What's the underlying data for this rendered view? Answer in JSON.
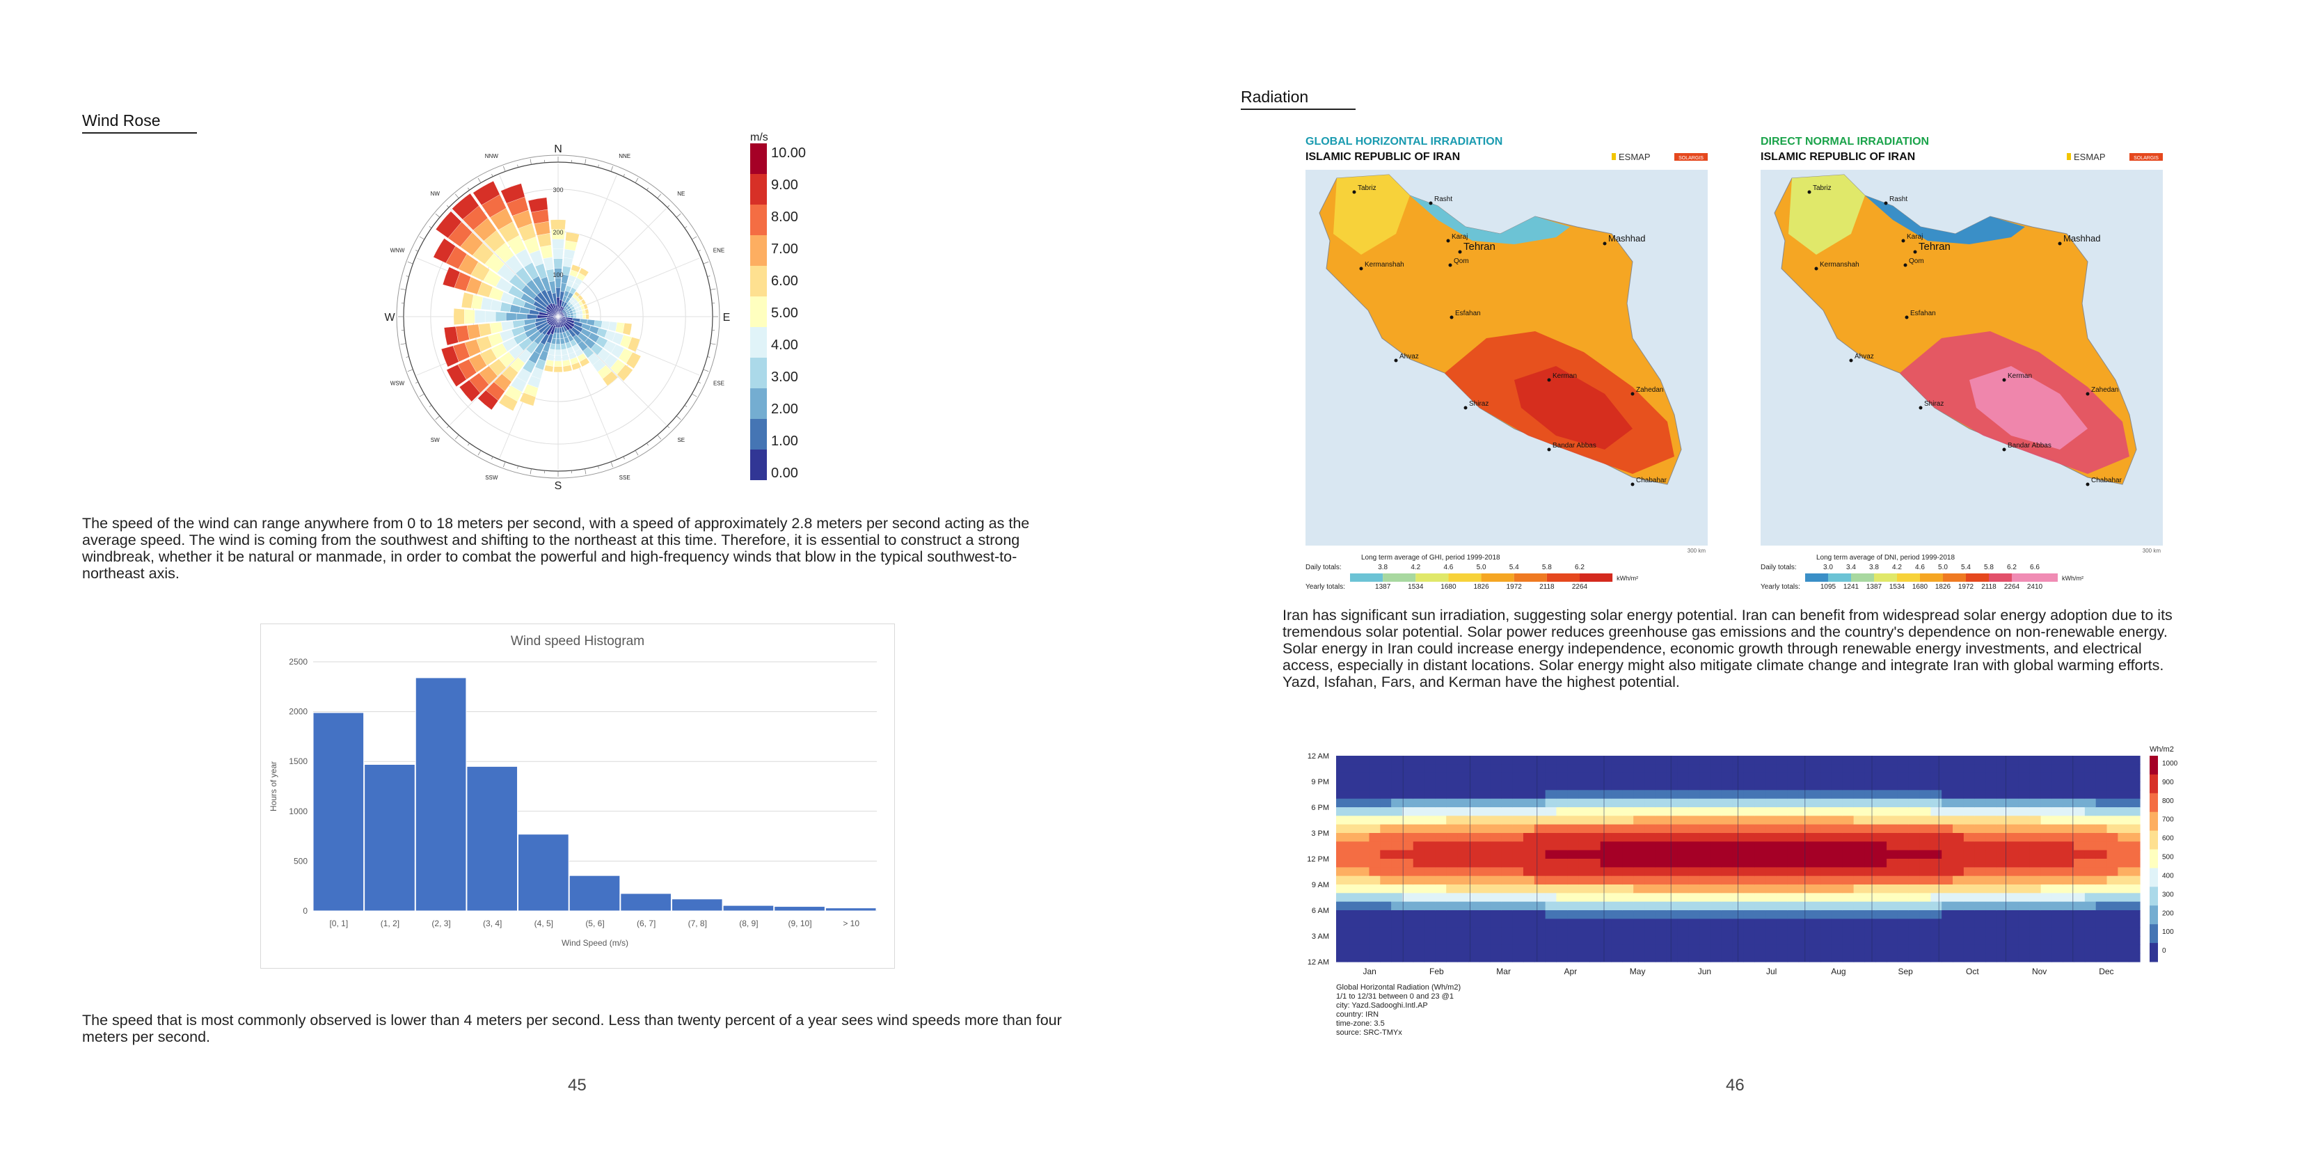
{
  "left": {
    "section_title": "Wind Rose",
    "windrose": {
      "colorbar_title": "m/s",
      "colorbar_labels": [
        "10.00",
        "9.00",
        "8.00",
        "7.00",
        "6.00",
        "5.00",
        "4.00",
        "3.00",
        "2.00",
        "1.00",
        "0.00"
      ],
      "colorbar_colors": [
        "#a50026",
        "#d73027",
        "#f46d43",
        "#fdae61",
        "#fee090",
        "#ffffbf",
        "#e0f3f8",
        "#abd9e9",
        "#74add1",
        "#4575b4",
        "#313695"
      ],
      "directions": [
        "N",
        "NNE",
        "NE",
        "ENE",
        "E",
        "ESE",
        "SE",
        "SSE",
        "S",
        "SSW",
        "SW",
        "WSW",
        "W",
        "WNW",
        "NW",
        "NNW"
      ],
      "ring_labels": [
        "100",
        "200",
        "300"
      ]
    },
    "paragraph1": "The speed of the wind can range anywhere from 0 to 18 meters per second, with a speed of approximately 2.8 meters per second acting as the average speed. The wind is coming from the southwest and shifting to the northeast at this time. Therefore, it is essential to construct a strong windbreak, whether it be natural or manmade, in order to combat the powerful and high-frequency winds that blow in the typical southwest-to-northeast axis.",
    "paragraph2": "The speed that is most commonly observed is lower than 4 meters per second. Less than twenty percent of a year sees wind speeds more than four meters per second.",
    "page_number": "45"
  },
  "right": {
    "section_title": "Radiation",
    "map_ghi": {
      "title": "GLOBAL HORIZONTAL IRRADIATION",
      "subtitle": "ISLAMIC REPUBLIC OF IRAN",
      "legend_title": "Long term average of GHI, period 1999-2018",
      "daily_label": "Daily totals:",
      "daily_values": [
        "3.8",
        "4.2",
        "4.6",
        "5.0",
        "5.4",
        "5.8",
        "6.2"
      ],
      "yearly_label": "Yearly totals:",
      "yearly_values": [
        "1387",
        "1534",
        "1680",
        "1826",
        "1972",
        "2118",
        "2264"
      ],
      "unit": "kWh/m²",
      "colors": [
        "#6cc3d5",
        "#a8d8a0",
        "#e0e86a",
        "#f7d23a",
        "#f5a623",
        "#ef7a22",
        "#e5481e",
        "#d42a1e"
      ]
    },
    "map_dni": {
      "title": "DIRECT NORMAL IRRADIATION",
      "subtitle": "ISLAMIC REPUBLIC OF IRAN",
      "legend_title": "Long term average of DNI, period 1999-2018",
      "daily_label": "Daily totals:",
      "daily_values": [
        "3.0",
        "3.4",
        "3.8",
        "4.2",
        "4.6",
        "5.0",
        "5.4",
        "5.8",
        "6.2",
        "6.6"
      ],
      "yearly_label": "Yearly totals:",
      "yearly_values": [
        "1095",
        "1241",
        "1387",
        "1534",
        "1680",
        "1826",
        "1972",
        "2118",
        "2264",
        "2410"
      ],
      "unit": "kWh/m²",
      "colors": [
        "#3a8fc7",
        "#6cc3d5",
        "#a8d8a0",
        "#e0e86a",
        "#f7d23a",
        "#f5a623",
        "#ef7a22",
        "#e5481e",
        "#e2506a",
        "#f08cb4"
      ]
    },
    "map_common": {
      "esmap_label": "ESMAP",
      "solargis_label": "SOLARGIS",
      "cities": [
        "Tabriz",
        "Rasht",
        "Karaj",
        "Tehran",
        "Qom",
        "Mashhad",
        "Kermanshah",
        "Esfahan",
        "Ahvaz",
        "Kerman",
        "Shiraz",
        "Zahedan",
        "Bandar Abbas",
        "Chabahar"
      ],
      "scale_label": "300 km"
    },
    "paragraph": "Iran has significant sun irradiation, suggesting solar energy potential. Iran can benefit from widespread solar energy adoption due to its tremendous solar potential. Solar power reduces greenhouse gas emissions and the country's dependence on non-renewable energy. Solar energy in Iran could increase energy independence, economic growth through renewable energy investments, and electrical access, especially in distant locations. Solar energy might also mitigate climate change and integrate Iran with global warming efforts. Yazd, Isfahan, Fars, and Kerman have the highest potential.",
    "heatmap": {
      "y_labels": [
        "12 AM",
        "9 PM",
        "6 PM",
        "3 PM",
        "12 PM",
        "9 AM",
        "6 AM",
        "3 AM",
        "12 AM"
      ],
      "x_labels": [
        "Jan",
        "Feb",
        "Mar",
        "Apr",
        "May",
        "Jun",
        "Jul",
        "Aug",
        "Sep",
        "Oct",
        "Nov",
        "Dec"
      ],
      "unit": "Wh/m2",
      "scale_labels": [
        "1000",
        "900",
        "800",
        "700",
        "600",
        "500",
        "400",
        "300",
        "200",
        "100",
        "0"
      ],
      "scale_colors": [
        "#a50026",
        "#d73027",
        "#f46d43",
        "#fdae61",
        "#fee090",
        "#ffffbf",
        "#e0f3f8",
        "#abd9e9",
        "#74add1",
        "#4575b4",
        "#313695"
      ],
      "caption": [
        "Global Horizontal Radiation (Wh/m2)",
        "1/1 to 12/31 between 0 and 23 @1",
        "city: Yazd.Sadooghi.Intl.AP",
        "country: IRN",
        "time-zone: 3.5",
        "source: SRC-TMYx"
      ]
    },
    "page_number": "46"
  },
  "chart_data": [
    {
      "type": "bar",
      "title": "Wind speed Histogram",
      "xlabel": "Wind Speed (m/s)",
      "ylabel": "Hours of year",
      "categories": [
        "[0, 1]",
        "(1, 2]",
        "(2, 3]",
        "(3, 4]",
        "(4, 5]",
        "(5, 6]",
        "(6, 7]",
        "(7, 8]",
        "(8, 9]",
        "(9, 10]",
        "> 10"
      ],
      "values": [
        1990,
        1470,
        2340,
        1450,
        770,
        355,
        175,
        120,
        55,
        45,
        30
      ],
      "yticks": [
        0,
        500,
        1000,
        1500,
        2000,
        2500
      ],
      "ylim": [
        0,
        2500
      ],
      "color": "#4472c4",
      "grid": true
    },
    {
      "type": "heatmap",
      "ylabel": "",
      "value_range": [
        0,
        1000
      ],
      "unit": "Wh/m2"
    }
  ]
}
